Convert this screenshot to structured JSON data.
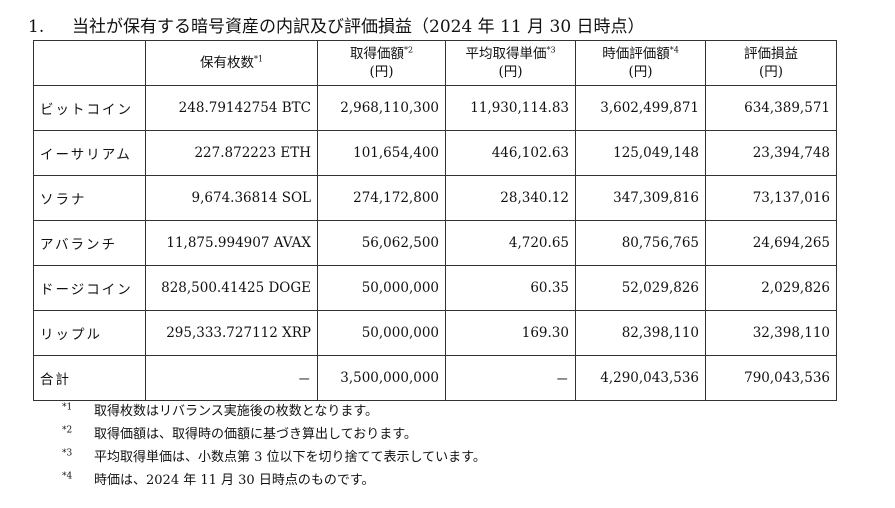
{
  "title": {
    "number": "1.",
    "text": "当社が保有する暗号資産の内訳及び評価損益（2024 年 11 月 30 日時点）"
  },
  "table": {
    "headers": [
      {
        "label": "",
        "unit": "",
        "sup": ""
      },
      {
        "label": "保有枚数",
        "unit": "",
        "sup": "*1"
      },
      {
        "label": "取得価額",
        "unit": "(円)",
        "sup": "*2"
      },
      {
        "label": "平均取得単価",
        "unit": "(円)",
        "sup": "*3"
      },
      {
        "label": "時価評価額",
        "unit": "(円)",
        "sup": "*4"
      },
      {
        "label": "評価損益",
        "unit": "(円)",
        "sup": ""
      }
    ],
    "rows": [
      {
        "name": "ビットコイン",
        "holdings": "248.79142754 BTC",
        "cost": "2,968,110,300",
        "avg_price": "11,930,114.83",
        "market_value": "3,602,499,871",
        "gain": "634,389,571"
      },
      {
        "name": "イーサリアム",
        "holdings": "227.872223 ETH",
        "cost": "101,654,400",
        "avg_price": "446,102.63",
        "market_value": "125,049,148",
        "gain": "23,394,748"
      },
      {
        "name": "ソラナ",
        "holdings": "9,674.36814 SOL",
        "cost": "274,172,800",
        "avg_price": "28,340.12",
        "market_value": "347,309,816",
        "gain": "73,137,016"
      },
      {
        "name": "アバランチ",
        "holdings": "11,875.994907 AVAX",
        "cost": "56,062,500",
        "avg_price": "4,720.65",
        "market_value": "80,756,765",
        "gain": "24,694,265"
      },
      {
        "name": "ドージコイン",
        "holdings": "828,500.41425 DOGE",
        "cost": "50,000,000",
        "avg_price": "60.35",
        "market_value": "52,029,826",
        "gain": "2,029,826"
      },
      {
        "name": "リップル",
        "holdings": "295,333.727112 XRP",
        "cost": "50,000,000",
        "avg_price": "169.30",
        "market_value": "82,398,110",
        "gain": "32,398,110"
      }
    ],
    "total": {
      "name": "合計",
      "holdings": "－",
      "cost": "3,500,000,000",
      "avg_price": "－",
      "market_value": "4,290,043,536",
      "gain": "790,043,536"
    }
  },
  "notes": [
    {
      "mark": "*1",
      "text": "取得枚数はリバランス実施後の枚数となります。"
    },
    {
      "mark": "*2",
      "text": "取得価額は、取得時の価額に基づき算出しております。"
    },
    {
      "mark": "*3",
      "text": "平均取得単価は、小数点第 3 位以下を切り捨てて表示しています。"
    },
    {
      "mark": "*4",
      "text": "時価は、2024 年 11 月 30 日時点のものです。"
    }
  ]
}
